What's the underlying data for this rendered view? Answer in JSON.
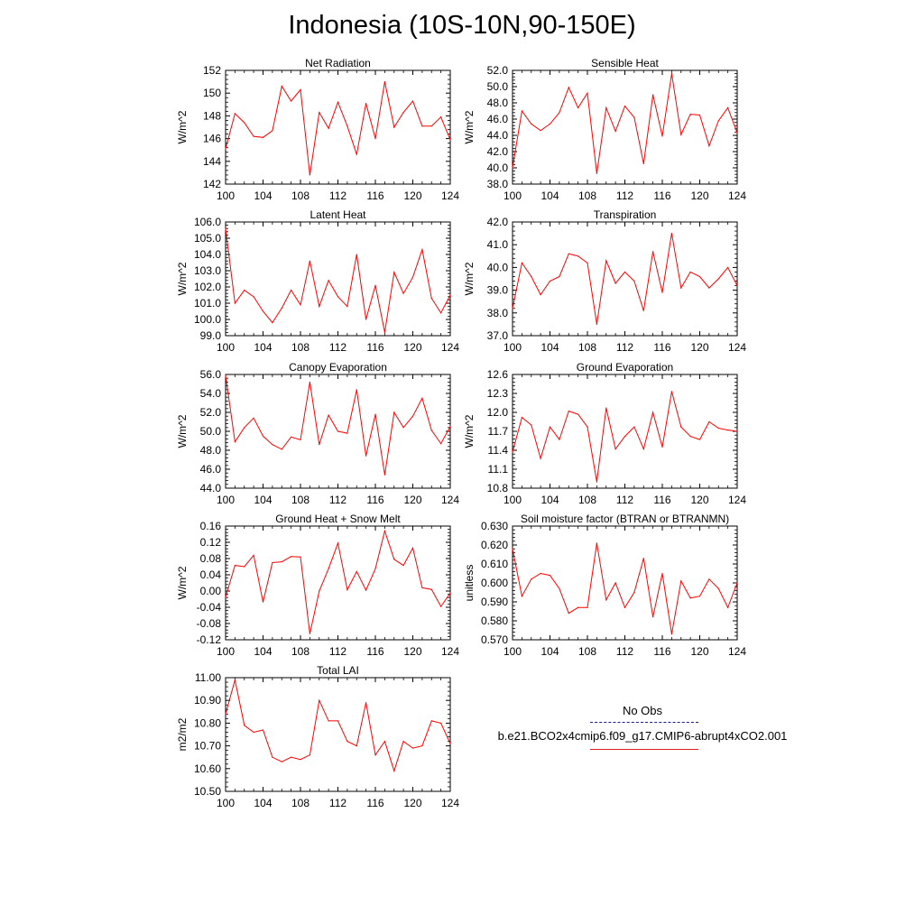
{
  "title": "Indonesia (10S-10N,90-150E)",
  "colors": {
    "series": "#ff0000",
    "axis": "#000000",
    "obs": "#1a1a8c"
  },
  "legend": {
    "obs_label": "No Obs",
    "model_label": "b.e21.BCO2x4cmip6.f09_g17.CMIP6-abrupt4xCO2.001"
  },
  "chart_data": [
    {
      "type": "line",
      "title": "Net Radiation",
      "ylabel": "W/m^2",
      "xlim": [
        100,
        124
      ],
      "ylim": [
        142,
        152
      ],
      "yticks": [
        142,
        144,
        146,
        148,
        150,
        152
      ],
      "ytick_labels": [
        "142",
        "144",
        "146",
        "148",
        "150",
        "152"
      ],
      "xticks": [
        100,
        104,
        108,
        112,
        116,
        120,
        124
      ],
      "xtick_labels": [
        "100",
        "104",
        "108",
        "112",
        "116",
        "120",
        "124"
      ],
      "x": [
        100,
        101,
        102,
        103,
        104,
        105,
        106,
        107,
        108,
        109,
        110,
        111,
        112,
        113,
        114,
        115,
        116,
        117,
        118,
        119,
        120,
        121,
        122,
        123,
        124
      ],
      "values": [
        145.1,
        148.2,
        147.4,
        146.2,
        146.1,
        146.7,
        150.6,
        149.3,
        150.3,
        142.8,
        148.3,
        146.9,
        149.2,
        147.1,
        144.6,
        149.1,
        146.0,
        151.0,
        147.0,
        148.3,
        149.3,
        147.1,
        147.1,
        147.9,
        145.9
      ]
    },
    {
      "type": "line",
      "title": "Sensible Heat",
      "ylabel": "W/m^2",
      "xlim": [
        100,
        124
      ],
      "ylim": [
        38,
        52
      ],
      "yticks": [
        38,
        40,
        42,
        44,
        46,
        48,
        50,
        52
      ],
      "ytick_labels": [
        "38.0",
        "40.0",
        "42.0",
        "44.0",
        "46.0",
        "48.0",
        "50.0",
        "52.0"
      ],
      "xticks": [
        100,
        104,
        108,
        112,
        116,
        120,
        124
      ],
      "xtick_labels": [
        "100",
        "104",
        "108",
        "112",
        "116",
        "120",
        "124"
      ],
      "x": [
        100,
        101,
        102,
        103,
        104,
        105,
        106,
        107,
        108,
        109,
        110,
        111,
        112,
        113,
        114,
        115,
        116,
        117,
        118,
        119,
        120,
        121,
        122,
        123,
        124
      ],
      "values": [
        40.0,
        47.0,
        45.4,
        44.6,
        45.4,
        46.8,
        49.9,
        47.4,
        49.2,
        39.3,
        47.4,
        44.5,
        47.6,
        46.2,
        40.5,
        49.0,
        43.9,
        51.6,
        44.1,
        46.6,
        46.5,
        42.7,
        45.8,
        47.4,
        44.3
      ]
    },
    {
      "type": "line",
      "title": "Latent Heat",
      "ylabel": "W/m^2",
      "xlim": [
        100,
        124
      ],
      "ylim": [
        99,
        106
      ],
      "yticks": [
        99,
        100,
        101,
        102,
        103,
        104,
        105,
        106
      ],
      "ytick_labels": [
        "99.0",
        "100.0",
        "101.0",
        "102.0",
        "103.0",
        "104.0",
        "105.0",
        "106.0"
      ],
      "xticks": [
        100,
        104,
        108,
        112,
        116,
        120,
        124
      ],
      "xtick_labels": [
        "100",
        "104",
        "108",
        "112",
        "116",
        "120",
        "124"
      ],
      "x": [
        100,
        101,
        102,
        103,
        104,
        105,
        106,
        107,
        108,
        109,
        110,
        111,
        112,
        113,
        114,
        115,
        116,
        117,
        118,
        119,
        120,
        121,
        122,
        123,
        124
      ],
      "values": [
        105.6,
        101.0,
        101.8,
        101.4,
        100.5,
        99.8,
        100.7,
        101.8,
        100.9,
        103.6,
        100.8,
        102.4,
        101.4,
        100.8,
        104.0,
        100.0,
        102.1,
        99.2,
        102.9,
        101.6,
        102.6,
        104.3,
        101.3,
        100.4,
        101.5
      ]
    },
    {
      "type": "line",
      "title": "Transpiration",
      "ylabel": "W/m^2",
      "xlim": [
        100,
        124
      ],
      "ylim": [
        37,
        42
      ],
      "yticks": [
        37,
        38,
        39,
        40,
        41,
        42
      ],
      "ytick_labels": [
        "37.0",
        "38.0",
        "39.0",
        "40.0",
        "41.0",
        "42.0"
      ],
      "xticks": [
        100,
        104,
        108,
        112,
        116,
        120,
        124
      ],
      "xtick_labels": [
        "100",
        "104",
        "108",
        "112",
        "116",
        "120",
        "124"
      ],
      "x": [
        100,
        101,
        102,
        103,
        104,
        105,
        106,
        107,
        108,
        109,
        110,
        111,
        112,
        113,
        114,
        115,
        116,
        117,
        118,
        119,
        120,
        121,
        122,
        123,
        124
      ],
      "values": [
        38.2,
        40.2,
        39.6,
        38.8,
        39.4,
        39.6,
        40.6,
        40.5,
        40.2,
        37.5,
        40.3,
        39.3,
        39.8,
        39.4,
        38.1,
        40.7,
        38.9,
        41.5,
        39.1,
        39.8,
        39.6,
        39.1,
        39.5,
        40.0,
        39.2
      ]
    },
    {
      "type": "line",
      "title": "Canopy Evaporation",
      "ylabel": "W/m^2",
      "xlim": [
        100,
        124
      ],
      "ylim": [
        44,
        56
      ],
      "yticks": [
        44,
        46,
        48,
        50,
        52,
        54,
        56
      ],
      "ytick_labels": [
        "44.0",
        "46.0",
        "48.0",
        "50.0",
        "52.0",
        "54.0",
        "56.0"
      ],
      "xticks": [
        100,
        104,
        108,
        112,
        116,
        120,
        124
      ],
      "xtick_labels": [
        "100",
        "104",
        "108",
        "112",
        "116",
        "120",
        "124"
      ],
      "x": [
        100,
        101,
        102,
        103,
        104,
        105,
        106,
        107,
        108,
        109,
        110,
        111,
        112,
        113,
        114,
        115,
        116,
        117,
        118,
        119,
        120,
        121,
        122,
        123,
        124
      ],
      "values": [
        55.9,
        48.9,
        50.4,
        51.4,
        49.5,
        48.6,
        48.1,
        49.4,
        49.1,
        55.2,
        48.6,
        51.7,
        50.0,
        49.8,
        54.4,
        47.4,
        51.8,
        45.4,
        52.0,
        50.4,
        51.6,
        53.5,
        50.1,
        48.7,
        50.5
      ]
    },
    {
      "type": "line",
      "title": "Ground Evaporation",
      "ylabel": "W/m^2",
      "xlim": [
        100,
        124
      ],
      "ylim": [
        10.8,
        12.6
      ],
      "yticks": [
        10.8,
        11.1,
        11.4,
        11.7,
        12.0,
        12.3,
        12.6
      ],
      "ytick_labels": [
        "10.8",
        "11.1",
        "11.4",
        "11.7",
        "12.0",
        "12.3",
        "12.6"
      ],
      "xticks": [
        100,
        104,
        108,
        112,
        116,
        120,
        124
      ],
      "xtick_labels": [
        "100",
        "104",
        "108",
        "112",
        "116",
        "120",
        "124"
      ],
      "x": [
        100,
        101,
        102,
        103,
        104,
        105,
        106,
        107,
        108,
        109,
        110,
        111,
        112,
        113,
        114,
        115,
        116,
        117,
        118,
        119,
        120,
        121,
        122,
        123,
        124
      ],
      "values": [
        11.37,
        11.92,
        11.8,
        11.27,
        11.77,
        11.57,
        12.02,
        11.97,
        11.77,
        10.9,
        12.07,
        11.42,
        11.62,
        11.77,
        11.42,
        12.0,
        11.45,
        12.33,
        11.77,
        11.62,
        11.57,
        11.85,
        11.75,
        11.72,
        11.7
      ]
    },
    {
      "type": "line",
      "title": "Ground Heat + Snow Melt",
      "ylabel": "W/m^2",
      "xlim": [
        100,
        124
      ],
      "ylim": [
        -0.12,
        0.16
      ],
      "yticks": [
        -0.12,
        -0.08,
        -0.04,
        0.0,
        0.04,
        0.08,
        0.12,
        0.16
      ],
      "ytick_labels": [
        "-0.12",
        "-0.08",
        "-0.04",
        "0.00",
        "0.04",
        "0.08",
        "0.12",
        "0.16"
      ],
      "xticks": [
        100,
        104,
        108,
        112,
        116,
        120,
        124
      ],
      "xtick_labels": [
        "100",
        "104",
        "108",
        "112",
        "116",
        "120",
        "124"
      ],
      "x": [
        100,
        101,
        102,
        103,
        104,
        105,
        106,
        107,
        108,
        109,
        110,
        111,
        112,
        113,
        114,
        115,
        116,
        117,
        118,
        119,
        120,
        121,
        122,
        123,
        124
      ],
      "values": [
        -0.015,
        0.063,
        0.06,
        0.088,
        -0.027,
        0.07,
        0.072,
        0.085,
        0.084,
        -0.105,
        0.0,
        0.055,
        0.118,
        0.003,
        0.048,
        0.002,
        0.055,
        0.148,
        0.078,
        0.063,
        0.106,
        0.008,
        0.004,
        -0.038,
        -0.005
      ]
    },
    {
      "type": "line",
      "title": "Soil moisture factor (BTRAN or BTRANMN)",
      "ylabel": "unitless",
      "xlim": [
        100,
        124
      ],
      "ylim": [
        0.57,
        0.63
      ],
      "yticks": [
        0.57,
        0.58,
        0.59,
        0.6,
        0.61,
        0.62,
        0.63
      ],
      "ytick_labels": [
        "0.570",
        "0.580",
        "0.590",
        "0.600",
        "0.610",
        "0.620",
        "0.630"
      ],
      "xticks": [
        100,
        104,
        108,
        112,
        116,
        120,
        124
      ],
      "xtick_labels": [
        "100",
        "104",
        "108",
        "112",
        "116",
        "120",
        "124"
      ],
      "x": [
        100,
        101,
        102,
        103,
        104,
        105,
        106,
        107,
        108,
        109,
        110,
        111,
        112,
        113,
        114,
        115,
        116,
        117,
        118,
        119,
        120,
        121,
        122,
        123,
        124
      ],
      "values": [
        0.618,
        0.593,
        0.602,
        0.605,
        0.604,
        0.597,
        0.584,
        0.587,
        0.587,
        0.621,
        0.591,
        0.6,
        0.587,
        0.595,
        0.613,
        0.582,
        0.605,
        0.573,
        0.601,
        0.592,
        0.593,
        0.602,
        0.597,
        0.587,
        0.6
      ]
    },
    {
      "type": "line",
      "title": "Total LAI",
      "ylabel": "m2/m2",
      "xlim": [
        100,
        124
      ],
      "ylim": [
        10.5,
        11.0
      ],
      "yticks": [
        10.5,
        10.6,
        10.7,
        10.8,
        10.9,
        11.0
      ],
      "ytick_labels": [
        "10.50",
        "10.60",
        "10.70",
        "10.80",
        "10.90",
        "11.00"
      ],
      "xticks": [
        100,
        104,
        108,
        112,
        116,
        120,
        124
      ],
      "xtick_labels": [
        "100",
        "104",
        "108",
        "112",
        "116",
        "120",
        "124"
      ],
      "x": [
        100,
        101,
        102,
        103,
        104,
        105,
        106,
        107,
        108,
        109,
        110,
        111,
        112,
        113,
        114,
        115,
        116,
        117,
        118,
        119,
        120,
        121,
        122,
        123,
        124
      ],
      "values": [
        10.84,
        10.99,
        10.79,
        10.76,
        10.77,
        10.65,
        10.63,
        10.65,
        10.64,
        10.66,
        10.9,
        10.81,
        10.81,
        10.72,
        10.7,
        10.89,
        10.66,
        10.72,
        10.59,
        10.72,
        10.69,
        10.7,
        10.81,
        10.8,
        10.71
      ]
    }
  ]
}
